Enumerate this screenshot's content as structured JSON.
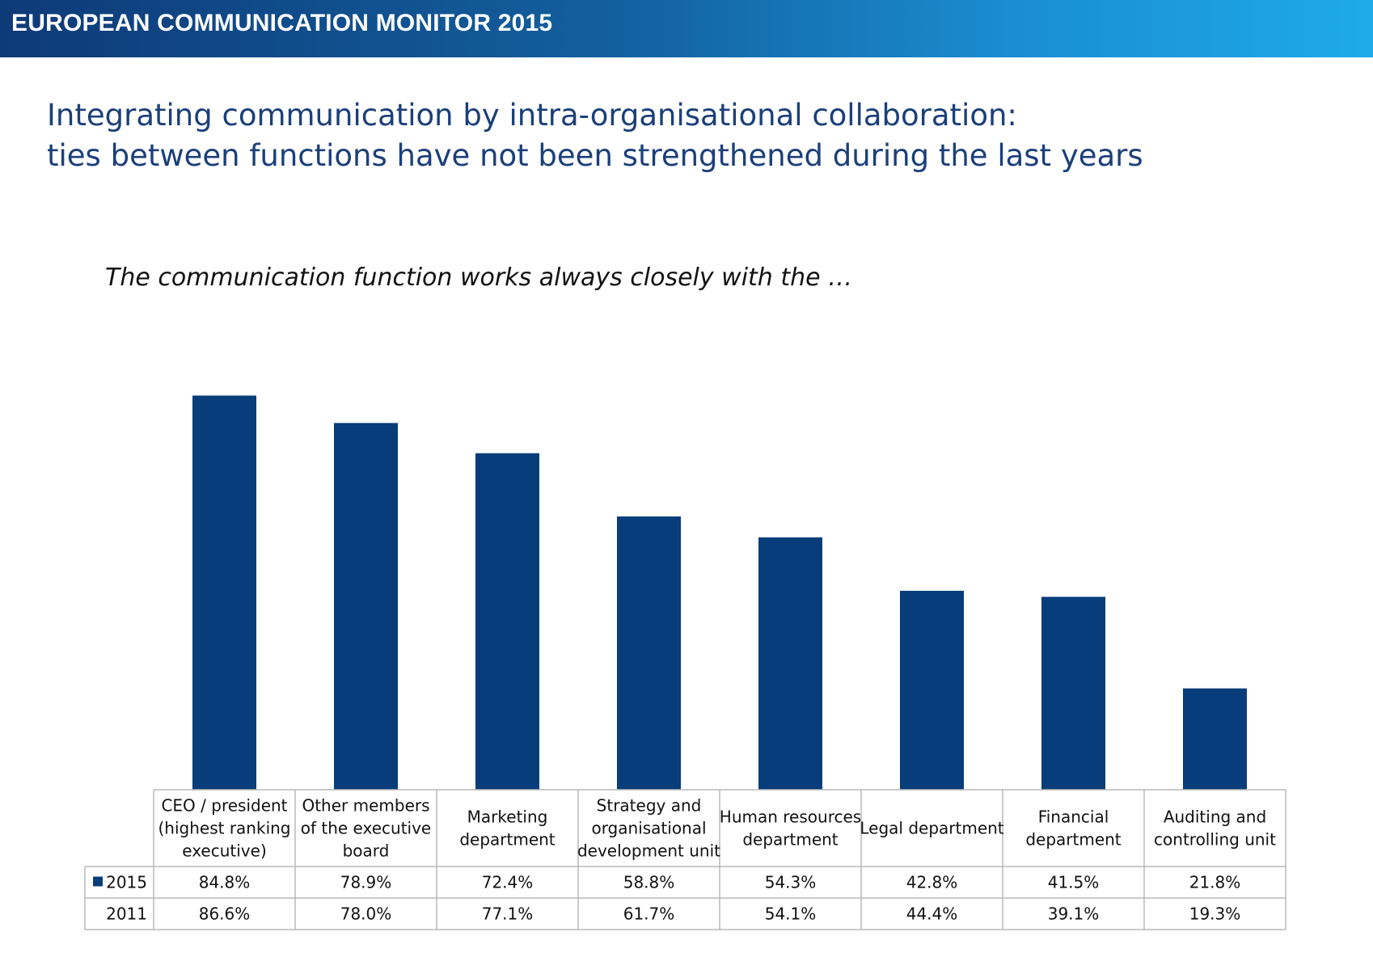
{
  "header": {
    "title": "EUROPEAN COMMUNICATION MONITOR 2015"
  },
  "slide": {
    "title_line1": "Integrating communication by intra-organisational collaboration:",
    "title_line2": "ties between functions have not been strengthened during the last years",
    "question": "The communication function works always closely with the …"
  },
  "chart_data": {
    "type": "bar",
    "categories": [
      [
        "CEO / president",
        "(highest ranking",
        "executive)"
      ],
      [
        "Other members",
        "of the executive",
        "board"
      ],
      [
        "Marketing",
        "department"
      ],
      [
        "Strategy and",
        "organisational",
        "development unit"
      ],
      [
        "Human resources",
        "department"
      ],
      [
        "Legal department"
      ],
      [
        "Financial",
        "department"
      ],
      [
        "Auditing and",
        "controlling unit"
      ]
    ],
    "series": [
      {
        "name": "2015",
        "values": [
          84.8,
          78.9,
          72.4,
          58.8,
          54.3,
          42.8,
          41.5,
          21.8
        ],
        "labels": [
          "84.8%",
          "78.9%",
          "72.4%",
          "58.8%",
          "54.3%",
          "42.8%",
          "41.5%",
          "21.8%"
        ],
        "color": "#063d7a",
        "plotted": true
      },
      {
        "name": "2011",
        "values": [
          86.6,
          78.0,
          77.1,
          61.7,
          54.1,
          44.4,
          39.1,
          19.3
        ],
        "labels": [
          "86.6%",
          "78.0%",
          "77.1%",
          "61.7%",
          "54.1%",
          "44.4%",
          "39.1%",
          "19.3%"
        ],
        "plotted": false
      }
    ],
    "title": "",
    "xlabel": "",
    "ylabel": "",
    "ylim": [
      0,
      100
    ],
    "grid": false,
    "legend": "data-table"
  }
}
